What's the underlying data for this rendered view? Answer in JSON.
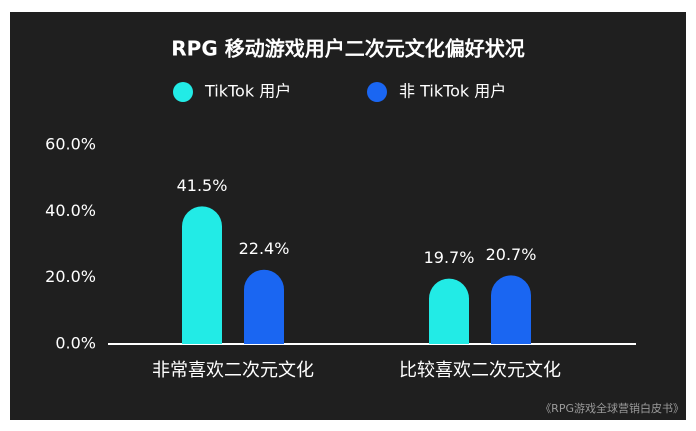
{
  "chart_data": {
    "type": "bar",
    "title": "RPG 移动游戏用户二次元文化偏好状况",
    "categories": [
      "非常喜欢二次元文化",
      "比较喜欢二次元文化"
    ],
    "series": [
      {
        "name": "TikTok 用户",
        "color": "#22ebe6",
        "values": [
          41.5,
          19.7
        ],
        "value_labels": [
          "41.5%",
          "19.7%"
        ]
      },
      {
        "name": "非 TikTok 用户",
        "color": "#1a66f2",
        "values": [
          22.4,
          20.7
        ],
        "value_labels": [
          "22.4%",
          "20.7%"
        ]
      }
    ],
    "ylim": [
      0,
      60
    ],
    "yticks": [
      {
        "value": 0,
        "label": "0.0%"
      },
      {
        "value": 20,
        "label": "20.0%"
      },
      {
        "value": 40,
        "label": "40.0%"
      },
      {
        "value": 60,
        "label": "60.0%"
      }
    ],
    "grid": false,
    "source": "《RPG游戏全球营销白皮书》"
  }
}
